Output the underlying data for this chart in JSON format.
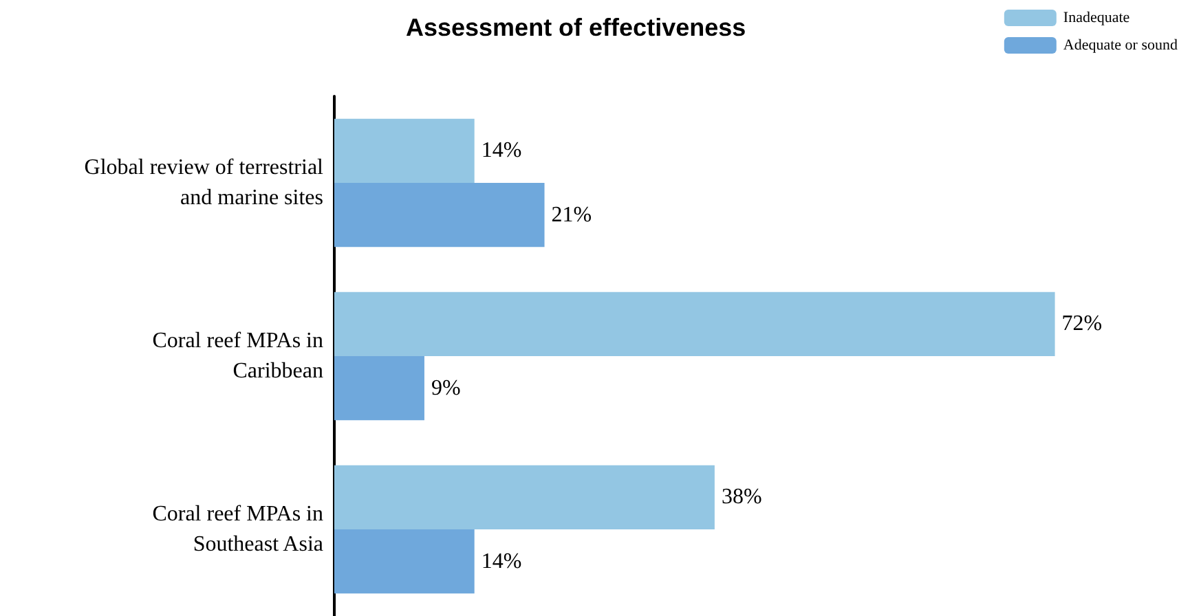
{
  "chart_data": {
    "type": "bar",
    "orientation": "horizontal",
    "title": "Assessment of effectiveness",
    "categories": [
      "Global review of terrestrial\nand marine sites",
      "Coral reef MPAs in\nCaribbean",
      "Coral reef MPAs in\nSoutheast Asia"
    ],
    "series": [
      {
        "name": "Inadequate",
        "color": "#93c6e3",
        "values": [
          14,
          72,
          38
        ],
        "value_labels": [
          "14%",
          "72%",
          "38%"
        ]
      },
      {
        "name": "Adequate or sound",
        "color": "#6fa8dc",
        "values": [
          21,
          9,
          14
        ],
        "value_labels": [
          "21%",
          "9%",
          "14%"
        ]
      }
    ],
    "legend": "top right"
  }
}
